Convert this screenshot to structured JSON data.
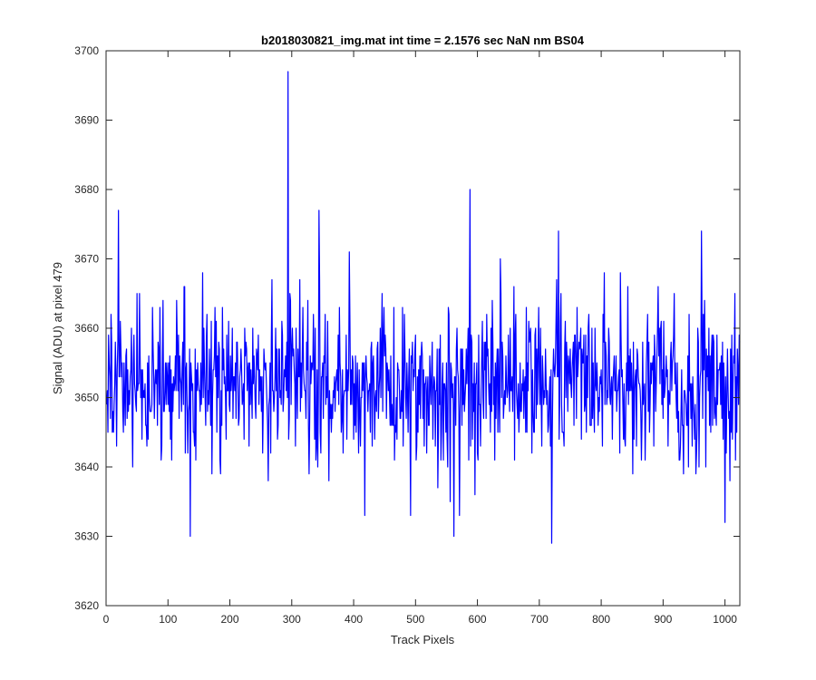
{
  "chart_data": {
    "type": "line",
    "title": "b2018030821_img.mat int time = 2.1576 sec  NaN nm BS04",
    "xlabel": "Track Pixels",
    "ylabel": "Signal (ADU) at pixel 479",
    "xlim": [
      0,
      1024
    ],
    "ylim": [
      3620,
      3700
    ],
    "xticks": [
      0,
      100,
      200,
      300,
      400,
      500,
      600,
      700,
      800,
      900,
      1000
    ],
    "yticks": [
      3620,
      3630,
      3640,
      3650,
      3660,
      3670,
      3680,
      3690,
      3700
    ],
    "grid": false,
    "line_color": "#0000ff",
    "series": [
      {
        "x_start": 1,
        "x_step": 1,
        "count": 1024,
        "baseline": 3652,
        "noise_amplitude": 6,
        "notable_points": [
          {
            "x": 294,
            "y": 3697
          },
          {
            "x": 588,
            "y": 3680
          },
          {
            "x": 20,
            "y": 3677
          },
          {
            "x": 344,
            "y": 3677
          },
          {
            "x": 731,
            "y": 3674
          },
          {
            "x": 962,
            "y": 3674
          },
          {
            "x": 136,
            "y": 3630
          },
          {
            "x": 562,
            "y": 3630
          },
          {
            "x": 720,
            "y": 3629
          },
          {
            "x": 1000,
            "y": 3632
          },
          {
            "x": 418,
            "y": 3633
          }
        ]
      }
    ]
  }
}
